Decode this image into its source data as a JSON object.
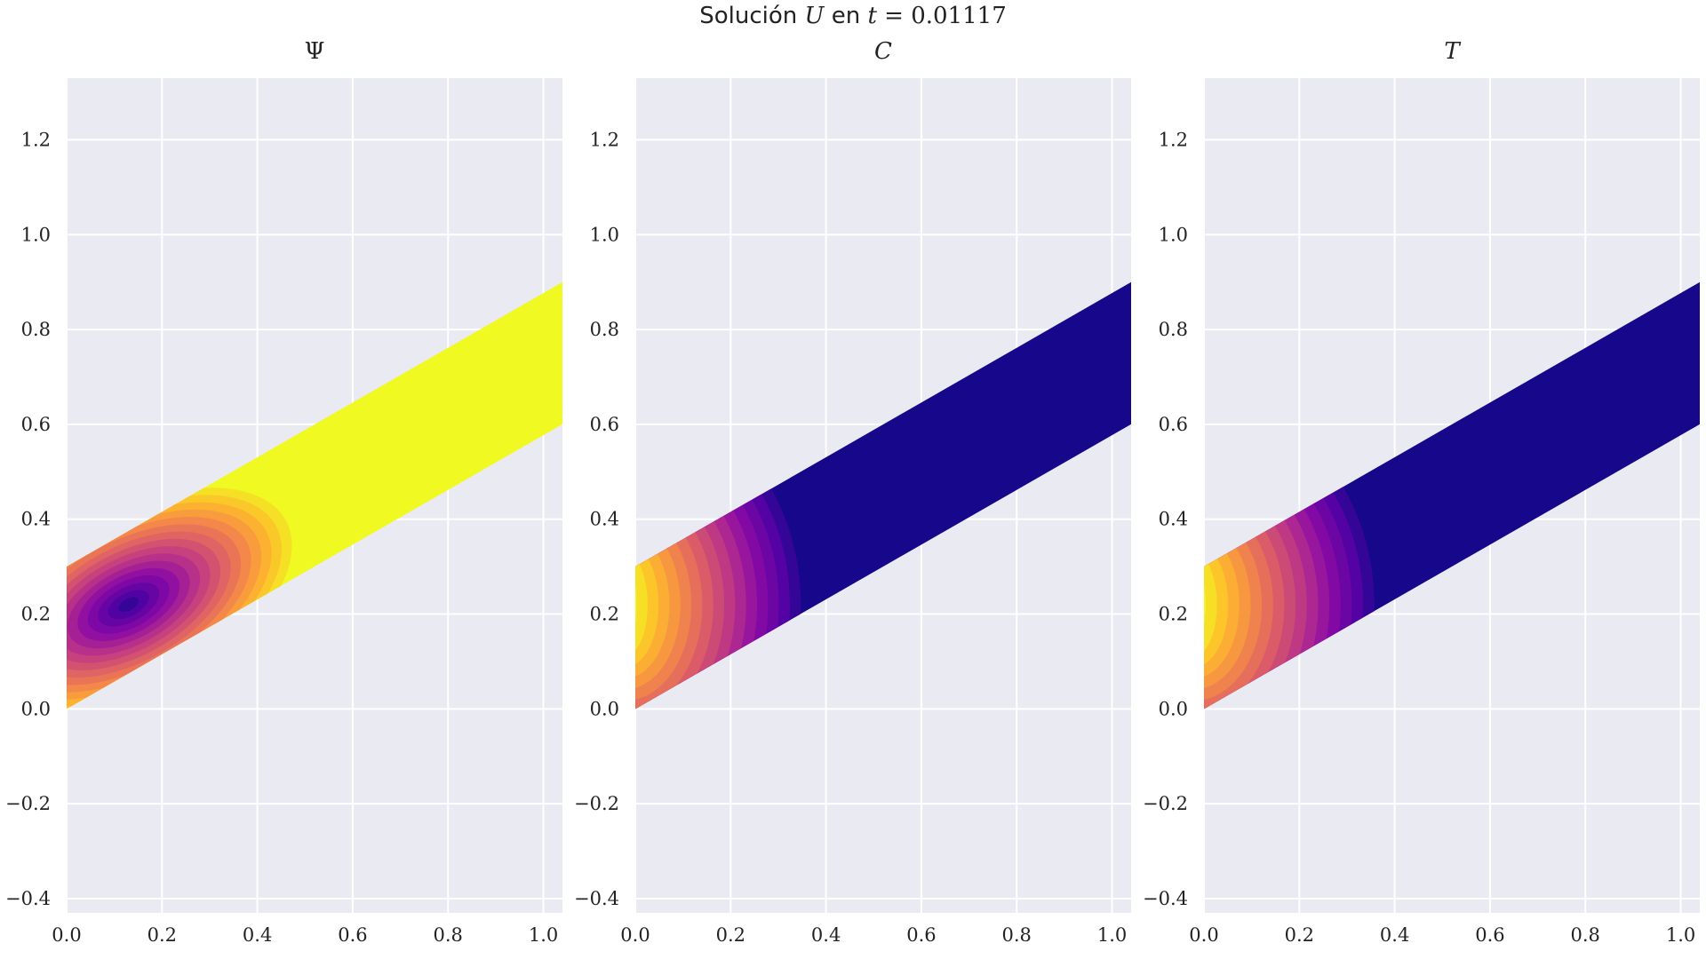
{
  "figure": {
    "title": "Solución U en t = 0.01117",
    "title_parts": {
      "pre": "Solución ",
      "var": "U",
      "mid": " en ",
      "tvar": "t",
      "eq": " = 0.01117"
    }
  },
  "chart_data": [
    {
      "type": "contour",
      "title": "Ψ",
      "xlim": [
        0.0,
        1.04
      ],
      "ylim": [
        -0.43,
        1.33
      ],
      "xticks": [
        "0.0",
        "0.2",
        "0.4",
        "0.6",
        "0.8",
        "1.0"
      ],
      "yticks": [
        "−0.4",
        "−0.2",
        "0.0",
        "0.2",
        "0.4",
        "0.6",
        "0.8",
        "1.0",
        "1.2"
      ],
      "grid": true,
      "colormap": "plasma",
      "background_color": "#eaeaf2",
      "domain": [
        [
          0.0,
          0.0
        ],
        [
          1.04,
          0.6
        ],
        [
          1.04,
          0.9
        ],
        [
          0.0,
          0.3
        ]
      ],
      "field": {
        "kind": "well",
        "center": [
          0.13,
          0.22
        ],
        "extent": [
          0.34,
          0.26
        ],
        "extreme": "min"
      }
    },
    {
      "type": "contour",
      "title": "C",
      "xlim": [
        0.0,
        1.04
      ],
      "ylim": [
        -0.43,
        1.33
      ],
      "xticks": [
        "0.0",
        "0.2",
        "0.4",
        "0.6",
        "0.8",
        "1.0"
      ],
      "yticks": [
        "−0.4",
        "−0.2",
        "0.0",
        "0.2",
        "0.4",
        "0.6",
        "0.8",
        "1.0",
        "1.2"
      ],
      "grid": true,
      "colormap": "plasma",
      "background_color": "#eaeaf2",
      "domain": [
        [
          0.0,
          0.0
        ],
        [
          1.04,
          0.6
        ],
        [
          1.04,
          0.9
        ],
        [
          0.0,
          0.3
        ]
      ],
      "field": {
        "kind": "front",
        "front_x": 0.36,
        "extreme": "max"
      }
    },
    {
      "type": "contour",
      "title": "T",
      "xlim": [
        0.0,
        1.04
      ],
      "ylim": [
        -0.43,
        1.33
      ],
      "xticks": [
        "0.0",
        "0.2",
        "0.4",
        "0.6",
        "0.8",
        "1.0"
      ],
      "yticks": [
        "−0.4",
        "−0.2",
        "0.0",
        "0.2",
        "0.4",
        "0.6",
        "0.8",
        "1.0",
        "1.2"
      ],
      "grid": true,
      "colormap": "plasma",
      "background_color": "#eaeaf2",
      "domain": [
        [
          0.0,
          0.0
        ],
        [
          1.04,
          0.6
        ],
        [
          1.04,
          0.9
        ],
        [
          0.0,
          0.3
        ]
      ],
      "field": {
        "kind": "front",
        "front_x": 0.37,
        "extreme": "max"
      }
    }
  ]
}
